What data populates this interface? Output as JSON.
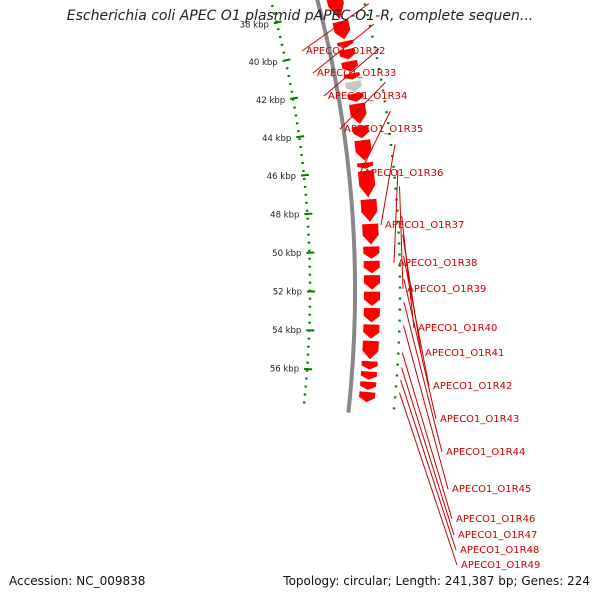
{
  "header": {
    "title": "Escherichia coli APEC O1 plasmid pAPEC-O1-R, complete sequen..."
  },
  "footer": {
    "accession": "Accession: NC_009838",
    "summary": "Topology: circular; Length: 241,387 bp; Genes: 224"
  },
  "colors": {
    "gene_forward": "#ff0000",
    "gene_pink": "#ff1493",
    "gene_blue": "#0000ff",
    "gene_grey": "#c8c8c8",
    "backbone": "#888888",
    "gc_dots": "#008000",
    "label_text": "#cc0000"
  },
  "scale_labels": [
    {
      "text": "38 kbp",
      "kbp": 38
    },
    {
      "text": "40 kbp",
      "kbp": 40
    },
    {
      "text": "42 kbp",
      "kbp": 42
    },
    {
      "text": "44 kbp",
      "kbp": 44
    },
    {
      "text": "46 kbp",
      "kbp": 46
    },
    {
      "text": "48 kbp",
      "kbp": 48
    },
    {
      "text": "50 kbp",
      "kbp": 50
    },
    {
      "text": "52 kbp",
      "kbp": 52
    },
    {
      "text": "54 kbp",
      "kbp": 54
    },
    {
      "text": "56 kbp",
      "kbp": 56
    }
  ],
  "gene_labels": [
    "APECO1_O1R32",
    "APECO1_O1R33",
    "APECO1_O1R34",
    "APECO1_O1R35",
    "APECO1_O1R36",
    "APECO1_O1R37",
    "APECO1_O1R38",
    "APECO1_O1R39",
    "APECO1_O1R40",
    "APECO1_O1R41",
    "APECO1_O1R42",
    "APECO1_O1R43",
    "APECO1_O1R44",
    "APECO1_O1R45",
    "APECO1_O1R46",
    "APECO1_O1R47",
    "APECO1_O1R48",
    "APECO1_O1R49"
  ]
}
